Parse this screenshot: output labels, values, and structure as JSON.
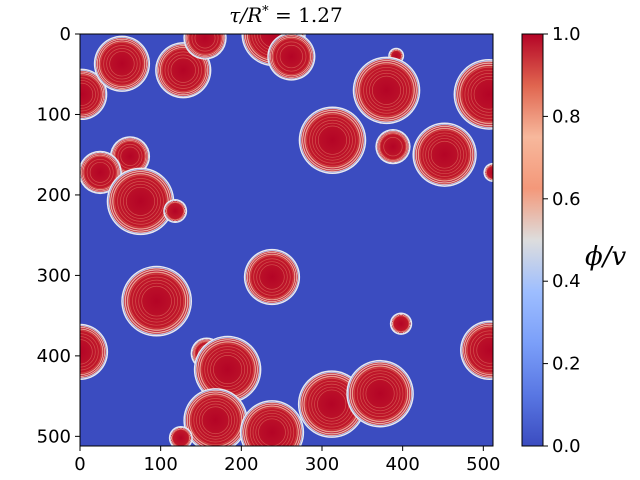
{
  "chart_data": {
    "type": "heatmap",
    "title": "τ/R* = 1.27",
    "title_parts": {
      "lhs": "τ/R",
      "sup": "*",
      "rhs": " = 1.27"
    },
    "colorbar_label": "ϕ/v",
    "colormap": "coolwarm",
    "colors": {
      "low": "#3b4cc0",
      "mid": "#dddddd",
      "high": "#b40426"
    },
    "xlim": [
      0,
      512
    ],
    "ylim": [
      512,
      0
    ],
    "clim": [
      0,
      1
    ],
    "x_ticks": [
      0,
      100,
      200,
      300,
      400,
      500
    ],
    "y_ticks": [
      0,
      100,
      200,
      300,
      400,
      500
    ],
    "colorbar_ticks": [
      "0.0",
      "0.2",
      "0.4",
      "0.6",
      "0.8",
      "1.0"
    ],
    "bubbles": [
      {
        "x": 2,
        "y": 75,
        "r": 30
      },
      {
        "x": 52,
        "y": 37,
        "r": 33
      },
      {
        "x": 128,
        "y": 45,
        "r": 33
      },
      {
        "x": 155,
        "y": 5,
        "r": 25
      },
      {
        "x": 240,
        "y": 0,
        "r": 38
      },
      {
        "x": 262,
        "y": 28,
        "r": 28
      },
      {
        "x": 392,
        "y": 27,
        "r": 8
      },
      {
        "x": 380,
        "y": 70,
        "r": 40
      },
      {
        "x": 507,
        "y": 75,
        "r": 42
      },
      {
        "x": 313,
        "y": 132,
        "r": 40
      },
      {
        "x": 388,
        "y": 140,
        "r": 20
      },
      {
        "x": 452,
        "y": 150,
        "r": 38
      },
      {
        "x": 62,
        "y": 152,
        "r": 23
      },
      {
        "x": 25,
        "y": 172,
        "r": 25
      },
      {
        "x": 75,
        "y": 208,
        "r": 40
      },
      {
        "x": 118,
        "y": 220,
        "r": 13
      },
      {
        "x": 512,
        "y": 172,
        "r": 10
      },
      {
        "x": 95,
        "y": 332,
        "r": 42
      },
      {
        "x": 238,
        "y": 302,
        "r": 33
      },
      {
        "x": 398,
        "y": 360,
        "r": 12
      },
      {
        "x": 0,
        "y": 395,
        "r": 33
      },
      {
        "x": 508,
        "y": 393,
        "r": 35
      },
      {
        "x": 157,
        "y": 397,
        "r": 18
      },
      {
        "x": 183,
        "y": 417,
        "r": 40
      },
      {
        "x": 312,
        "y": 460,
        "r": 40
      },
      {
        "x": 372,
        "y": 447,
        "r": 40
      },
      {
        "x": 168,
        "y": 480,
        "r": 38
      },
      {
        "x": 238,
        "y": 495,
        "r": 38
      },
      {
        "x": 125,
        "y": 502,
        "r": 13
      }
    ]
  }
}
